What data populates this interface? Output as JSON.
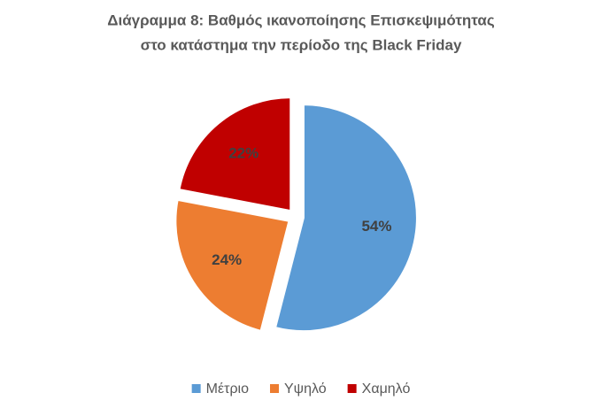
{
  "chart_data": {
    "type": "pie",
    "title": [
      "Διάγραμμα 8: Βαθμός ικανοποίησης Επισκεψιμότητας",
      "στο κατάστημα την περίοδο της Black Friday"
    ],
    "categories": [
      "Μέτριο",
      "Υψηλό",
      "Χαμηλό"
    ],
    "values": [
      54,
      24,
      22
    ],
    "value_labels": [
      "54%",
      "24%",
      "22%"
    ],
    "colors": [
      "#5b9bd5",
      "#ed7d31",
      "#c00000"
    ],
    "legend": "bottom"
  }
}
